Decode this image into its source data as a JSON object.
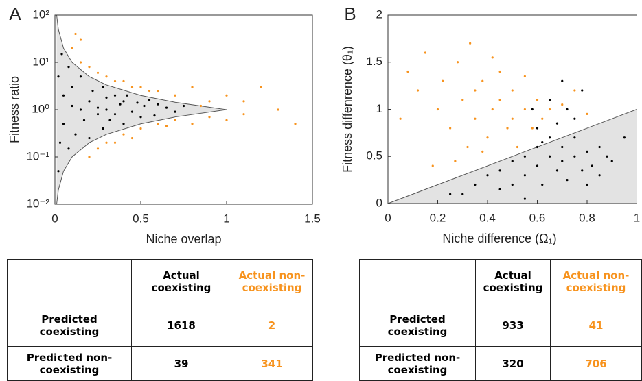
{
  "chart_data": [
    {
      "type": "scatter",
      "panel_label": "A",
      "xlabel": "Niche overlap",
      "ylabel": "Fitness ratio",
      "xlim": [
        0,
        1.5
      ],
      "xticks": [
        0,
        0.5,
        1,
        1.5
      ],
      "ylim": [
        0.01,
        100
      ],
      "log_y": true,
      "yticks": [
        {
          "value": 0.01,
          "label": "10⁻²"
        },
        {
          "value": 0.1,
          "label": "10⁻¹"
        },
        {
          "value": 1,
          "label": "10⁰"
        },
        {
          "value": 10,
          "label": "10¹"
        },
        {
          "value": 100,
          "label": "10²"
        }
      ],
      "region": {
        "color": "#e3e3e3",
        "x": [
          0.01,
          0.02,
          0.05,
          0.1,
          0.2,
          0.3,
          0.5,
          0.7,
          1
        ],
        "upper": [
          100,
          50,
          20,
          10,
          5,
          3.33,
          2,
          1.43,
          1
        ],
        "lower": [
          0.01,
          0.02,
          0.05,
          0.1,
          0.2,
          0.3,
          0.5,
          0.7,
          1
        ]
      },
      "series": [
        {
          "color": "#f7931e",
          "x": [
            0.1,
            0.15,
            0.2,
            0.25,
            0.3,
            0.35,
            0.4,
            0.45,
            0.5,
            0.55,
            0.6,
            0.7,
            0.8,
            0.9,
            1,
            1.1,
            1.2,
            1.3,
            1.4,
            0.2,
            0.25,
            0.3,
            0.4,
            0.5,
            0.6,
            0.7,
            0.8,
            0.9,
            1.0,
            1.1,
            0.15,
            0.35,
            0.45,
            0.65,
            0.85,
            0.12
          ],
          "values": [
            20,
            10,
            8,
            6,
            5,
            4,
            4,
            3,
            3,
            2.5,
            2.5,
            2,
            3,
            1.5,
            2,
            1.5,
            3,
            1,
            0.5,
            0.1,
            0.15,
            0.2,
            0.3,
            0.4,
            0.5,
            0.6,
            0.5,
            0.7,
            0.6,
            0.8,
            30,
            0.2,
            0.25,
            0.45,
            1.2,
            40
          ]
        },
        {
          "color": "#000000",
          "x": [
            0.02,
            0.03,
            0.05,
            0.05,
            0.08,
            0.08,
            0.1,
            0.1,
            0.12,
            0.15,
            0.15,
            0.17,
            0.2,
            0.2,
            0.22,
            0.25,
            0.25,
            0.28,
            0.28,
            0.3,
            0.3,
            0.32,
            0.35,
            0.35,
            0.38,
            0.4,
            0.4,
            0.42,
            0.45,
            0.48,
            0.5,
            0.52,
            0.55,
            0.58,
            0.6,
            0.65,
            0.7,
            0.75,
            0.02,
            0.04
          ],
          "values": [
            5,
            0.2,
            2,
            0.5,
            8,
            0.15,
            1.2,
            3,
            0.3,
            1,
            5,
            0.6,
            1.5,
            0.25,
            2.5,
            0.8,
            1.1,
            3,
            0.4,
            1,
            1.8,
            0.6,
            2,
            0.8,
            1.3,
            0.5,
            1.5,
            2,
            0.9,
            1.4,
            0.7,
            1.2,
            1.6,
            0.75,
            1.3,
            1.1,
            0.9,
            1.2,
            0.05,
            15
          ]
        }
      ]
    },
    {
      "type": "scatter",
      "panel_label": "B",
      "xlabel": "Niche difference (Ω₁)",
      "ylabel": "Fitness diffenrence (θ₁)",
      "xlim": [
        0,
        1
      ],
      "xticks": [
        0,
        0.2,
        0.4,
        0.6,
        0.8,
        1
      ],
      "ylim": [
        0,
        2
      ],
      "yticks": [
        0,
        0.5,
        1,
        1.5,
        2
      ],
      "log_y": false,
      "region": {
        "color": "#e3e3e3",
        "x": [
          0,
          1
        ],
        "upper": [
          0,
          1
        ],
        "lower": [
          0,
          0
        ]
      },
      "series": [
        {
          "color": "#f7931e",
          "x": [
            0.05,
            0.08,
            0.12,
            0.15,
            0.18,
            0.2,
            0.22,
            0.25,
            0.28,
            0.3,
            0.32,
            0.33,
            0.35,
            0.38,
            0.4,
            0.42,
            0.45,
            0.48,
            0.5,
            0.52,
            0.55,
            0.58,
            0.6,
            0.62,
            0.65,
            0.7,
            0.75,
            0.8,
            0.45,
            0.38,
            0.27,
            0.5,
            0.55,
            0.42,
            0.35
          ],
          "values": [
            0.9,
            1.4,
            1.2,
            1.6,
            0.4,
            1.0,
            1.3,
            0.8,
            1.5,
            1.1,
            0.6,
            1.7,
            0.9,
            1.3,
            0.7,
            1.0,
            1.4,
            0.8,
            1.2,
            0.6,
            1.0,
            0.8,
            1.1,
            0.9,
            1.0,
            1.05,
            1.2,
            0.95,
            1.1,
            0.55,
            0.45,
            0.9,
            1.35,
            1.55,
            1.2
          ]
        },
        {
          "color": "#000000",
          "x": [
            0.3,
            0.35,
            0.4,
            0.45,
            0.5,
            0.5,
            0.55,
            0.55,
            0.6,
            0.6,
            0.62,
            0.65,
            0.65,
            0.68,
            0.7,
            0.7,
            0.72,
            0.75,
            0.75,
            0.78,
            0.8,
            0.8,
            0.82,
            0.85,
            0.85,
            0.88,
            0.9,
            0.6,
            0.65,
            0.7,
            0.75,
            0.55,
            0.45,
            0.25,
            0.58,
            0.68,
            0.72,
            0.95,
            0.78,
            0.62
          ],
          "values": [
            0.1,
            0.2,
            0.3,
            0.35,
            0.45,
            0.2,
            0.5,
            0.3,
            0.4,
            0.6,
            0.2,
            0.5,
            0.7,
            0.35,
            0.45,
            0.6,
            0.25,
            0.5,
            0.7,
            0.35,
            0.55,
            0.2,
            0.4,
            0.6,
            0.3,
            0.5,
            0.45,
            0.8,
            1.1,
            1.3,
            0.9,
            0.05,
            0.15,
            0.1,
            1.0,
            0.85,
            1.0,
            0.7,
            1.2,
            0.65
          ]
        }
      ]
    }
  ],
  "tables": [
    {
      "columns": [
        "Actual coexisting",
        "Actual non-coexisting"
      ],
      "column_colors": [
        "#000000",
        "#f7931e"
      ],
      "rows": [
        {
          "label": "Predicted coexisting",
          "values": [
            1618,
            2
          ]
        },
        {
          "label": "Predicted non-coexisting",
          "values": [
            39,
            341
          ]
        }
      ]
    },
    {
      "columns": [
        "Actual coexisting",
        "Actual non-coexisting"
      ],
      "column_colors": [
        "#000000",
        "#f7931e"
      ],
      "rows": [
        {
          "label": "Predicted coexisting",
          "values": [
            933,
            41
          ]
        },
        {
          "label": "Predicted non-coexisting",
          "values": [
            320,
            706
          ]
        }
      ]
    }
  ]
}
